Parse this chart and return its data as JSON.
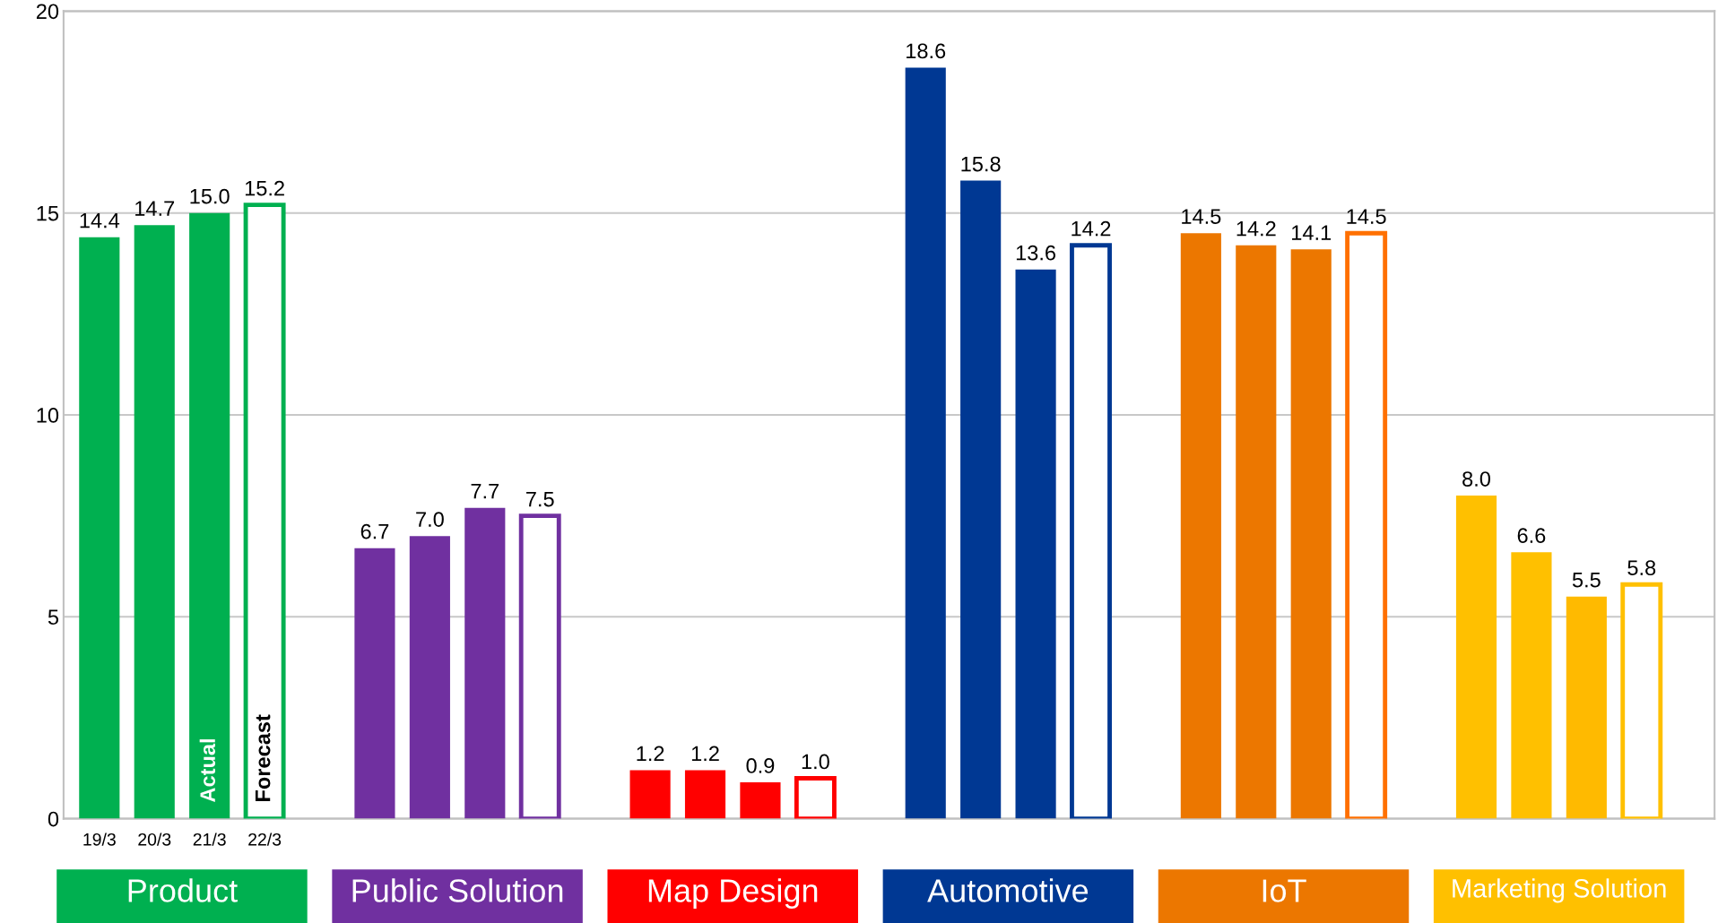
{
  "chart_data": {
    "type": "bar",
    "categories": [
      "Product",
      "Public Solution",
      "Map Design",
      "Automotive",
      "IoT",
      "Marketing Solution"
    ],
    "series": [
      {
        "name": "19/3",
        "colors": [
          "#00b050",
          "#7030a0",
          "#ff0000",
          "#003893",
          "#ec7700",
          "#ffc000"
        ],
        "values": [
          14.4,
          6.7,
          1.2,
          18.6,
          14.5,
          8.0
        ],
        "value_labels": [
          "14.4",
          "6.7",
          "1.2",
          "18.6",
          "14.5",
          "8.0"
        ]
      },
      {
        "name": "20/3",
        "colors": [
          "#00b050",
          "#7030a0",
          "#ff0000",
          "#003893",
          "#ec7700",
          "#ffc000"
        ],
        "values": [
          14.7,
          7.0,
          1.2,
          15.8,
          14.2,
          6.6
        ],
        "value_labels": [
          "14.7",
          "7.0",
          "1.2",
          "15.8",
          "14.2",
          "6.6"
        ]
      },
      {
        "name": "21/3",
        "colors": [
          "#00b050",
          "#7030a0",
          "#ff0000",
          "#003893",
          "#ec7700",
          "#ffba00"
        ],
        "values": [
          15.0,
          7.7,
          0.9,
          13.6,
          14.1,
          5.5
        ],
        "value_labels": [
          "15.0",
          "7.7",
          "0.9",
          "13.6",
          "14.1",
          "5.5"
        ]
      },
      {
        "name": "22/3",
        "color": "#ffffff",
        "colors": [
          "#00b050",
          "#7030a0",
          "#ff0000",
          "#003893",
          "#ff7000",
          "#ffc000"
        ],
        "values": [
          15.2,
          7.5,
          1.0,
          14.2,
          14.5,
          5.8
        ],
        "value_labels": [
          "15.2",
          "7.5",
          "1.0",
          "14.2",
          "14.5",
          "5.8"
        ]
      }
    ],
    "ylim": [
      0,
      20
    ],
    "yticks": [
      0,
      5,
      10,
      15,
      20
    ],
    "grid": "y",
    "annotations": [
      "Actual",
      "Forecast"
    ]
  }
}
